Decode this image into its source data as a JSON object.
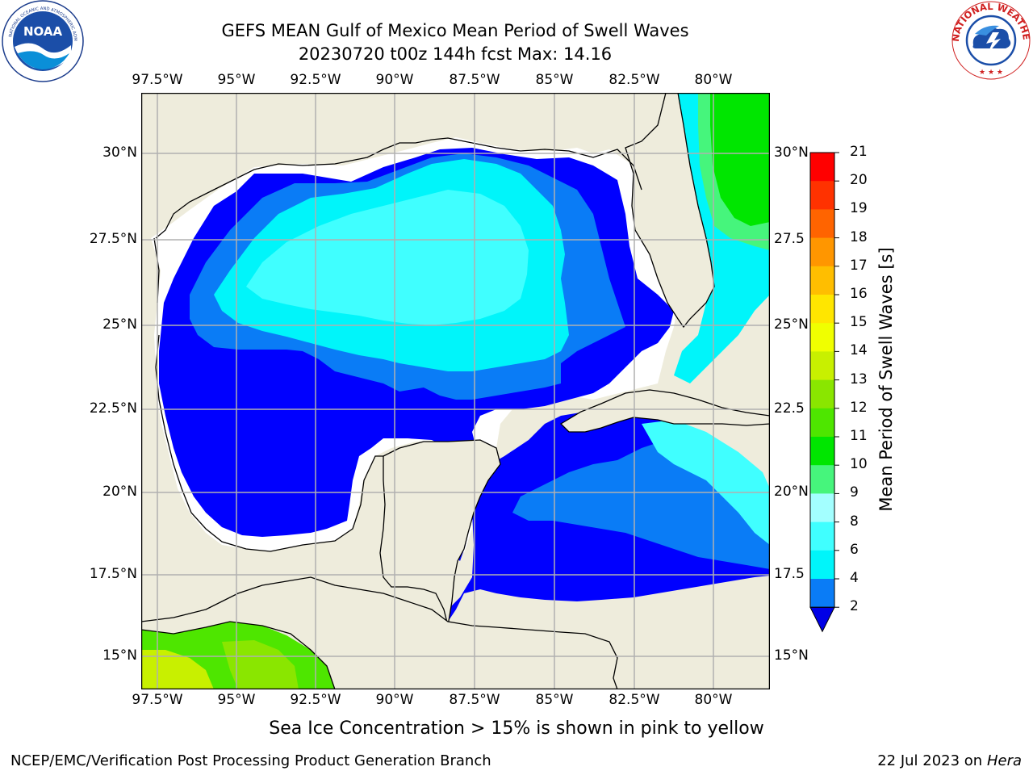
{
  "header": {
    "title_line1": "GEFS MEAN Gulf of Mexico Mean Period of Swell Waves",
    "title_line2": "20230720 t00z 144h fcst   Max: 14.16"
  },
  "logos": {
    "left_name": "NOAA",
    "right_text": "NATIONAL WEATHER SERVICE"
  },
  "map": {
    "lon_labels": [
      "97.5°W",
      "95°W",
      "92.5°W",
      "90°W",
      "87.5°W",
      "85°W",
      "82.5°W",
      "80°W"
    ],
    "lat_labels_left": [
      "30°N",
      "27.5°N",
      "25°N",
      "22.5°N",
      "20°N",
      "17.5°N",
      "15°N"
    ],
    "lat_labels_right": [
      "30°N",
      "27.5",
      "25°N",
      "22.5",
      "20°N",
      "17.5",
      "15°N"
    ],
    "colors": {
      "land": "#eeecdc",
      "no_data": "#ffffff",
      "grid": "#b0b0b0"
    }
  },
  "colorbar": {
    "label": "Mean Period of Swell Waves [s]",
    "ticks": [
      "2",
      "4",
      "6",
      "8",
      "9",
      "10",
      "11",
      "12",
      "13",
      "14",
      "15",
      "16",
      "17",
      "18",
      "19",
      "20",
      "21"
    ],
    "colors": [
      "#0000ff",
      "#0a7cf6",
      "#00f5fa",
      "#40ffff",
      "#a3ffff",
      "#46f57c",
      "#00e600",
      "#4ee600",
      "#8ae600",
      "#c8f000",
      "#f0ff00",
      "#ffe600",
      "#ffbe00",
      "#ff9600",
      "#ff6400",
      "#ff3200",
      "#ff0000"
    ],
    "under_color": "#0000e6"
  },
  "note": "Sea Ice Concentration > 15% is shown in pink to yellow",
  "footer": {
    "left": "NCEP/EMC/Verification Post Processing Product Generation Branch",
    "right_prefix": "22 Jul 2023 on ",
    "right_host": "Hera"
  }
}
